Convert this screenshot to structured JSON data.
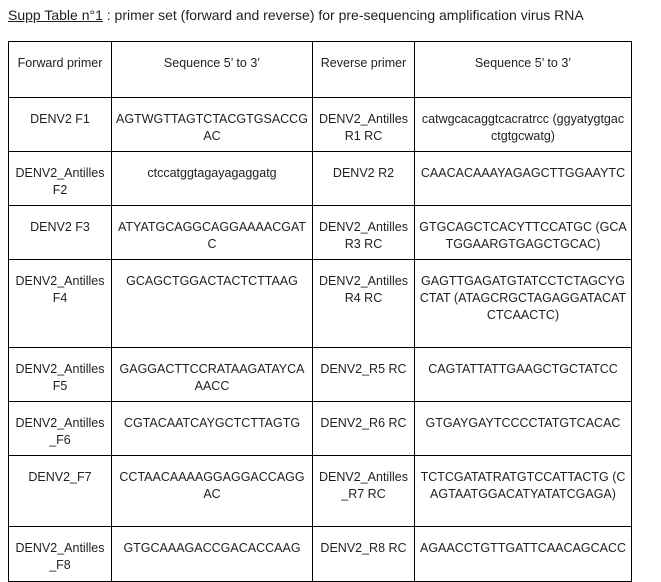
{
  "caption": {
    "label": "Supp Table n°1",
    "text": " : primer set (forward and reverse) for pre-sequencing amplification virus RNA"
  },
  "table": {
    "headers": [
      "Forward primer",
      "Sequence 5’ to 3’",
      "Reverse primer",
      "Sequence 5’ to 3’"
    ],
    "rows": [
      {
        "forward": "DENV2 F1",
        "forward_seq": "AGTWGTTAGTCTACGTGSACCGAC",
        "reverse": "DENV2_Antilles R1 RC",
        "reverse_seq": "catwgcacaggtcacratrcc (ggyatygtgacctgtgcwatg)"
      },
      {
        "forward": "DENV2_Antilles F2",
        "forward_seq": "ctccatggtagayagaggatg",
        "reverse": "DENV2 R2",
        "reverse_seq": "CAACACAAAYAGAGCTTGGAAYTC"
      },
      {
        "forward": "DENV2 F3",
        "forward_seq": "ATYATGCAGGCAGGAAAACGATC",
        "reverse": "DENV2_Antilles R3 RC",
        "reverse_seq": "GTGCAGCTCACYTTCCATGC (GCATGGAARGTGAGCTGCAC)"
      },
      {
        "forward": "DENV2_Antilles F4",
        "forward_seq": "GCAGCTGGACTACTCTTAAG",
        "reverse": "DENV2_Antilles R4 RC",
        "reverse_seq": "GAGTTGAGATGTATCCTCTAGCYGCTAT (ATAGCRGCTAGAGGATACATCTCAACTC)"
      },
      {
        "forward": "DENV2_Antilles F5",
        "forward_seq": "GAGGACTTCCRATAAGATAYCAAACC",
        "reverse": "DENV2_R5 RC",
        "reverse_seq": "CAGTATTATTGAAGCTGCTATCC"
      },
      {
        "forward": "DENV2_Antilles_F6",
        "forward_seq": "CGTACAATCAYGCTCTTAGTG",
        "reverse": "DENV2_R6 RC",
        "reverse_seq": "GTGAYGAYTCCCCTATGTCACAC"
      },
      {
        "forward": "DENV2_F7",
        "forward_seq": "CCTAACAAAAGGAGGACCAGGAC",
        "reverse": "DENV2_Antilles_R7 RC",
        "reverse_seq": "TCTCGATATRATGTCCATTACTG (CAGTAATGGACATYATATCGAGA)"
      },
      {
        "forward": "DENV2_Antilles_F8",
        "forward_seq": "GTGCAAAGACCGACACCAAG",
        "reverse": "DENV2_R8 RC",
        "reverse_seq": "AGAACCTGTTGATTCAACAGCACC"
      }
    ]
  }
}
